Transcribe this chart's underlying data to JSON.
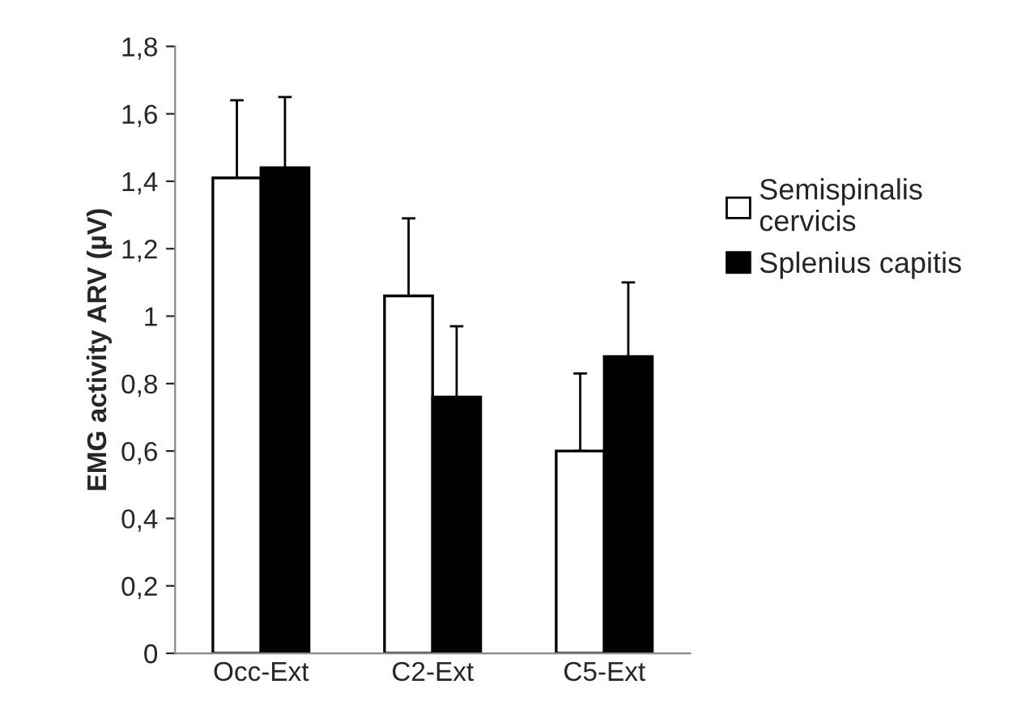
{
  "chart_data": {
    "type": "bar",
    "ylabel": "EMG activity ARV (µV)",
    "categories": [
      "Occ-Ext",
      "C2-Ext",
      "C5-Ext"
    ],
    "series": [
      {
        "name": "Semispinalis cervicis",
        "color": "#ffffff",
        "values": [
          1.41,
          1.06,
          0.6
        ],
        "errors": [
          [
            1.41,
            1.64
          ],
          [
            1.06,
            1.29
          ],
          [
            0.6,
            0.83
          ]
        ]
      },
      {
        "name": "Splenius capitis",
        "color": "#000000",
        "values": [
          1.44,
          0.76,
          0.88
        ],
        "errors": [
          [
            1.44,
            1.65
          ],
          [
            0.76,
            0.97
          ],
          [
            0.88,
            1.1
          ]
        ]
      }
    ],
    "ylim": [
      0,
      1.8
    ],
    "yticks": [
      0,
      {
        "value": 0.2,
        "label": "0,2"
      },
      {
        "value": 0.4,
        "label": "0,4"
      },
      {
        "value": 0.6,
        "label": "0,6"
      },
      {
        "value": 0.8,
        "label": "0,8"
      },
      1,
      {
        "value": 1.2,
        "label": "1,2"
      },
      {
        "value": 1.4,
        "label": "1,4"
      },
      {
        "value": 1.6,
        "label": "1,6"
      },
      {
        "value": 1.8,
        "label": "1,8"
      }
    ],
    "grid": false,
    "legend": "right"
  }
}
